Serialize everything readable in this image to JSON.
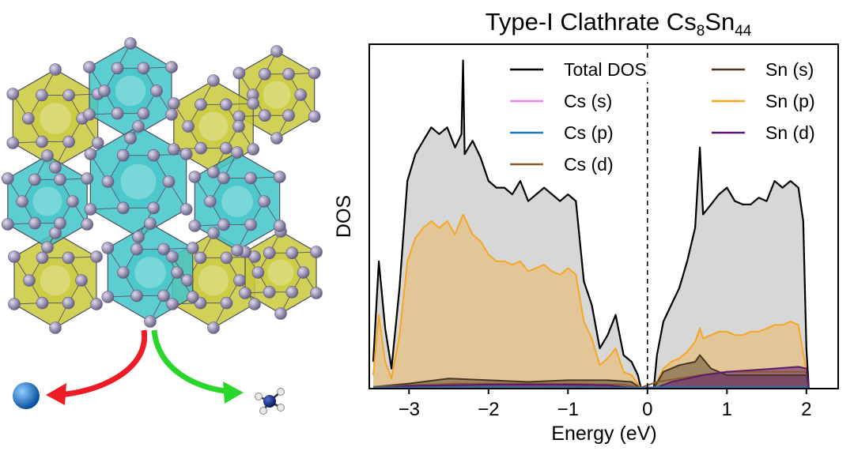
{
  "chart_data": {
    "type": "area",
    "title": {
      "main": "Type-I Clathrate Cs",
      "sub1": "8",
      "mid": "Sn",
      "sub2": "44"
    },
    "xlabel": "Energy (eV)",
    "ylabel": "DOS",
    "xlim": [
      -3.5,
      2.4
    ],
    "ylim": [
      0,
      1.0
    ],
    "x_ticks": [
      "-3",
      "-2",
      "-1",
      "0",
      "1",
      "2"
    ],
    "x_tick_values": [
      -3,
      -2,
      -1,
      0,
      1,
      2
    ],
    "fermi_level": 0,
    "legend_position": "top-right",
    "series": [
      {
        "name": "Total DOS",
        "color": "#000000",
        "points": [
          [
            -3.45,
            0.08
          ],
          [
            -3.38,
            0.38
          ],
          [
            -3.3,
            0.18
          ],
          [
            -3.22,
            0.06
          ],
          [
            -3.12,
            0.3
          ],
          [
            -3.02,
            0.62
          ],
          [
            -2.92,
            0.7
          ],
          [
            -2.82,
            0.74
          ],
          [
            -2.72,
            0.78
          ],
          [
            -2.62,
            0.76
          ],
          [
            -2.52,
            0.78
          ],
          [
            -2.42,
            0.72
          ],
          [
            -2.34,
            0.76
          ],
          [
            -2.32,
            0.98
          ],
          [
            -2.3,
            0.7
          ],
          [
            -2.2,
            0.74
          ],
          [
            -2.1,
            0.69
          ],
          [
            -2.0,
            0.62
          ],
          [
            -1.9,
            0.6
          ],
          [
            -1.8,
            0.6
          ],
          [
            -1.7,
            0.58
          ],
          [
            -1.6,
            0.62
          ],
          [
            -1.5,
            0.56
          ],
          [
            -1.4,
            0.58
          ],
          [
            -1.3,
            0.6
          ],
          [
            -1.2,
            0.58
          ],
          [
            -1.1,
            0.56
          ],
          [
            -1.0,
            0.58
          ],
          [
            -0.9,
            0.56
          ],
          [
            -0.8,
            0.32
          ],
          [
            -0.7,
            0.25
          ],
          [
            -0.6,
            0.12
          ],
          [
            -0.5,
            0.16
          ],
          [
            -0.4,
            0.22
          ],
          [
            -0.3,
            0.1
          ],
          [
            -0.2,
            0.08
          ],
          [
            -0.12,
            0.04
          ],
          [
            -0.08,
            0.0
          ],
          [
            0.0,
            0.0
          ],
          [
            0.08,
            0.0
          ],
          [
            0.12,
            0.1
          ],
          [
            0.2,
            0.2
          ],
          [
            0.3,
            0.25
          ],
          [
            0.4,
            0.3
          ],
          [
            0.5,
            0.38
          ],
          [
            0.6,
            0.48
          ],
          [
            0.66,
            0.72
          ],
          [
            0.7,
            0.52
          ],
          [
            0.8,
            0.55
          ],
          [
            0.9,
            0.58
          ],
          [
            1.0,
            0.6
          ],
          [
            1.1,
            0.56
          ],
          [
            1.2,
            0.55
          ],
          [
            1.3,
            0.55
          ],
          [
            1.4,
            0.57
          ],
          [
            1.5,
            0.56
          ],
          [
            1.6,
            0.62
          ],
          [
            1.7,
            0.6
          ],
          [
            1.8,
            0.62
          ],
          [
            1.9,
            0.6
          ],
          [
            1.96,
            0.5
          ],
          [
            2.0,
            0.12
          ],
          [
            2.03,
            0.0
          ]
        ]
      },
      {
        "name": "Cs (s)",
        "color": "#ee82ee",
        "points": [
          [
            -3.45,
            0.002
          ],
          [
            -2.0,
            0.002
          ],
          [
            -0.08,
            0.002
          ],
          [
            0.12,
            0.002
          ],
          [
            2.0,
            0.002
          ],
          [
            2.03,
            0.0
          ]
        ]
      },
      {
        "name": "Cs (p)",
        "color": "#1f77b4",
        "points": [
          [
            -3.45,
            0.003
          ],
          [
            -2.0,
            0.004
          ],
          [
            -0.08,
            0.003
          ],
          [
            0.12,
            0.004
          ],
          [
            2.0,
            0.004
          ],
          [
            2.03,
            0.0
          ]
        ]
      },
      {
        "name": "Cs (d)",
        "color": "#8b5a2b",
        "points": [
          [
            -3.45,
            0.005
          ],
          [
            -3.0,
            0.01
          ],
          [
            -2.4,
            0.015
          ],
          [
            -2.0,
            0.015
          ],
          [
            -1.0,
            0.015
          ],
          [
            -0.3,
            0.012
          ],
          [
            -0.08,
            0.003
          ],
          [
            0.12,
            0.02
          ],
          [
            0.66,
            0.04
          ],
          [
            1.0,
            0.05
          ],
          [
            1.5,
            0.05
          ],
          [
            2.0,
            0.05
          ],
          [
            2.03,
            0.0
          ]
        ]
      },
      {
        "name": "Sn (s)",
        "color": "#4a3520",
        "points": [
          [
            -3.45,
            0.005
          ],
          [
            -3.0,
            0.015
          ],
          [
            -2.5,
            0.03
          ],
          [
            -2.0,
            0.025
          ],
          [
            -1.5,
            0.02
          ],
          [
            -1.0,
            0.025
          ],
          [
            -0.5,
            0.025
          ],
          [
            -0.2,
            0.02
          ],
          [
            -0.08,
            0.0
          ],
          [
            0.08,
            0.0
          ],
          [
            0.2,
            0.05
          ],
          [
            0.4,
            0.07
          ],
          [
            0.6,
            0.08
          ],
          [
            0.66,
            0.1
          ],
          [
            0.8,
            0.06
          ],
          [
            1.0,
            0.04
          ],
          [
            1.5,
            0.04
          ],
          [
            2.0,
            0.04
          ],
          [
            2.03,
            0.0
          ]
        ]
      },
      {
        "name": "Sn (p)",
        "color": "#f5a623",
        "points": [
          [
            -3.45,
            0.04
          ],
          [
            -3.38,
            0.22
          ],
          [
            -3.3,
            0.08
          ],
          [
            -3.22,
            0.03
          ],
          [
            -3.12,
            0.16
          ],
          [
            -3.02,
            0.38
          ],
          [
            -2.92,
            0.45
          ],
          [
            -2.82,
            0.48
          ],
          [
            -2.72,
            0.5
          ],
          [
            -2.62,
            0.48
          ],
          [
            -2.52,
            0.5
          ],
          [
            -2.42,
            0.46
          ],
          [
            -2.32,
            0.52
          ],
          [
            -2.2,
            0.46
          ],
          [
            -2.1,
            0.44
          ],
          [
            -2.0,
            0.4
          ],
          [
            -1.9,
            0.38
          ],
          [
            -1.8,
            0.38
          ],
          [
            -1.7,
            0.37
          ],
          [
            -1.6,
            0.38
          ],
          [
            -1.5,
            0.35
          ],
          [
            -1.4,
            0.36
          ],
          [
            -1.3,
            0.37
          ],
          [
            -1.2,
            0.35
          ],
          [
            -1.1,
            0.34
          ],
          [
            -1.0,
            0.36
          ],
          [
            -0.9,
            0.34
          ],
          [
            -0.8,
            0.2
          ],
          [
            -0.7,
            0.15
          ],
          [
            -0.6,
            0.07
          ],
          [
            -0.5,
            0.09
          ],
          [
            -0.4,
            0.12
          ],
          [
            -0.3,
            0.05
          ],
          [
            -0.2,
            0.04
          ],
          [
            -0.08,
            0.0
          ],
          [
            0.08,
            0.0
          ],
          [
            0.2,
            0.06
          ],
          [
            0.3,
            0.08
          ],
          [
            0.4,
            0.09
          ],
          [
            0.5,
            0.11
          ],
          [
            0.6,
            0.14
          ],
          [
            0.66,
            0.18
          ],
          [
            0.7,
            0.15
          ],
          [
            0.8,
            0.16
          ],
          [
            0.9,
            0.17
          ],
          [
            1.0,
            0.17
          ],
          [
            1.1,
            0.16
          ],
          [
            1.2,
            0.16
          ],
          [
            1.3,
            0.17
          ],
          [
            1.4,
            0.17
          ],
          [
            1.5,
            0.18
          ],
          [
            1.6,
            0.19
          ],
          [
            1.7,
            0.19
          ],
          [
            1.8,
            0.2
          ],
          [
            1.9,
            0.19
          ],
          [
            2.0,
            0.05
          ],
          [
            2.03,
            0.0
          ]
        ]
      },
      {
        "name": "Sn (d)",
        "color": "#5c1a6e",
        "points": [
          [
            -3.45,
            0.002
          ],
          [
            -3.0,
            0.008
          ],
          [
            -2.5,
            0.01
          ],
          [
            -2.0,
            0.012
          ],
          [
            -1.5,
            0.012
          ],
          [
            -1.0,
            0.012
          ],
          [
            -0.5,
            0.01
          ],
          [
            -0.08,
            0.0
          ],
          [
            0.08,
            0.0
          ],
          [
            0.3,
            0.02
          ],
          [
            0.5,
            0.03
          ],
          [
            0.7,
            0.04
          ],
          [
            1.0,
            0.05
          ],
          [
            1.3,
            0.055
          ],
          [
            1.6,
            0.06
          ],
          [
            1.9,
            0.065
          ],
          [
            2.0,
            0.06
          ],
          [
            2.03,
            0.0
          ]
        ]
      }
    ]
  },
  "structure": {
    "cage_small_color": "#c9c93a",
    "cage_large_color": "#3fc4c8",
    "atom_color": "#9a91b5",
    "arrow_left_color": "#ee1c25",
    "arrow_right_color": "#2ad62a",
    "cs_atom_color": "#1a7fd6",
    "molecule_n_color": "#0b2a8a",
    "molecule_h_color": "#e8e8e8"
  }
}
